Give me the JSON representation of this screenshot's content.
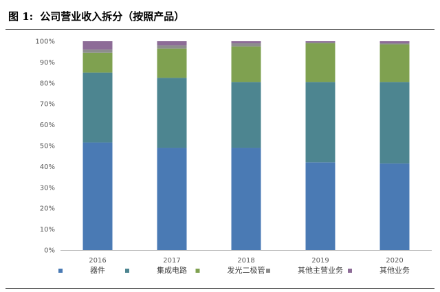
{
  "figure": {
    "label": "图 1:",
    "title": "公司营业收入拆分（按照产品）"
  },
  "chart_data": {
    "type": "bar",
    "stacked": true,
    "percent": true,
    "categories": [
      "2016",
      "2017",
      "2018",
      "2019",
      "2020"
    ],
    "series": [
      {
        "name": "器件",
        "color": "#4a7ab4",
        "values": [
          51.5,
          49,
          49,
          42,
          41.5
        ]
      },
      {
        "name": "集成电路",
        "color": "#4d8590",
        "values": [
          33.5,
          33.5,
          31.5,
          38.5,
          39
        ]
      },
      {
        "name": "发光二极管",
        "color": "#7fa150",
        "values": [
          9.5,
          14,
          17,
          18.5,
          18
        ]
      },
      {
        "name": "其他主营业务",
        "color": "#8d8d8d",
        "values": [
          1.5,
          1.5,
          1.5,
          0.5,
          0.5
        ]
      },
      {
        "name": "其他业务",
        "color": "#8d6c97",
        "values": [
          4,
          2,
          1,
          0.5,
          1
        ]
      }
    ],
    "y_ticks": [
      "0%",
      "10%",
      "20%",
      "30%",
      "40%",
      "50%",
      "60%",
      "70%",
      "80%",
      "90%",
      "100%"
    ],
    "ylim": [
      0,
      100
    ],
    "grid": false,
    "legend": "bottom"
  }
}
